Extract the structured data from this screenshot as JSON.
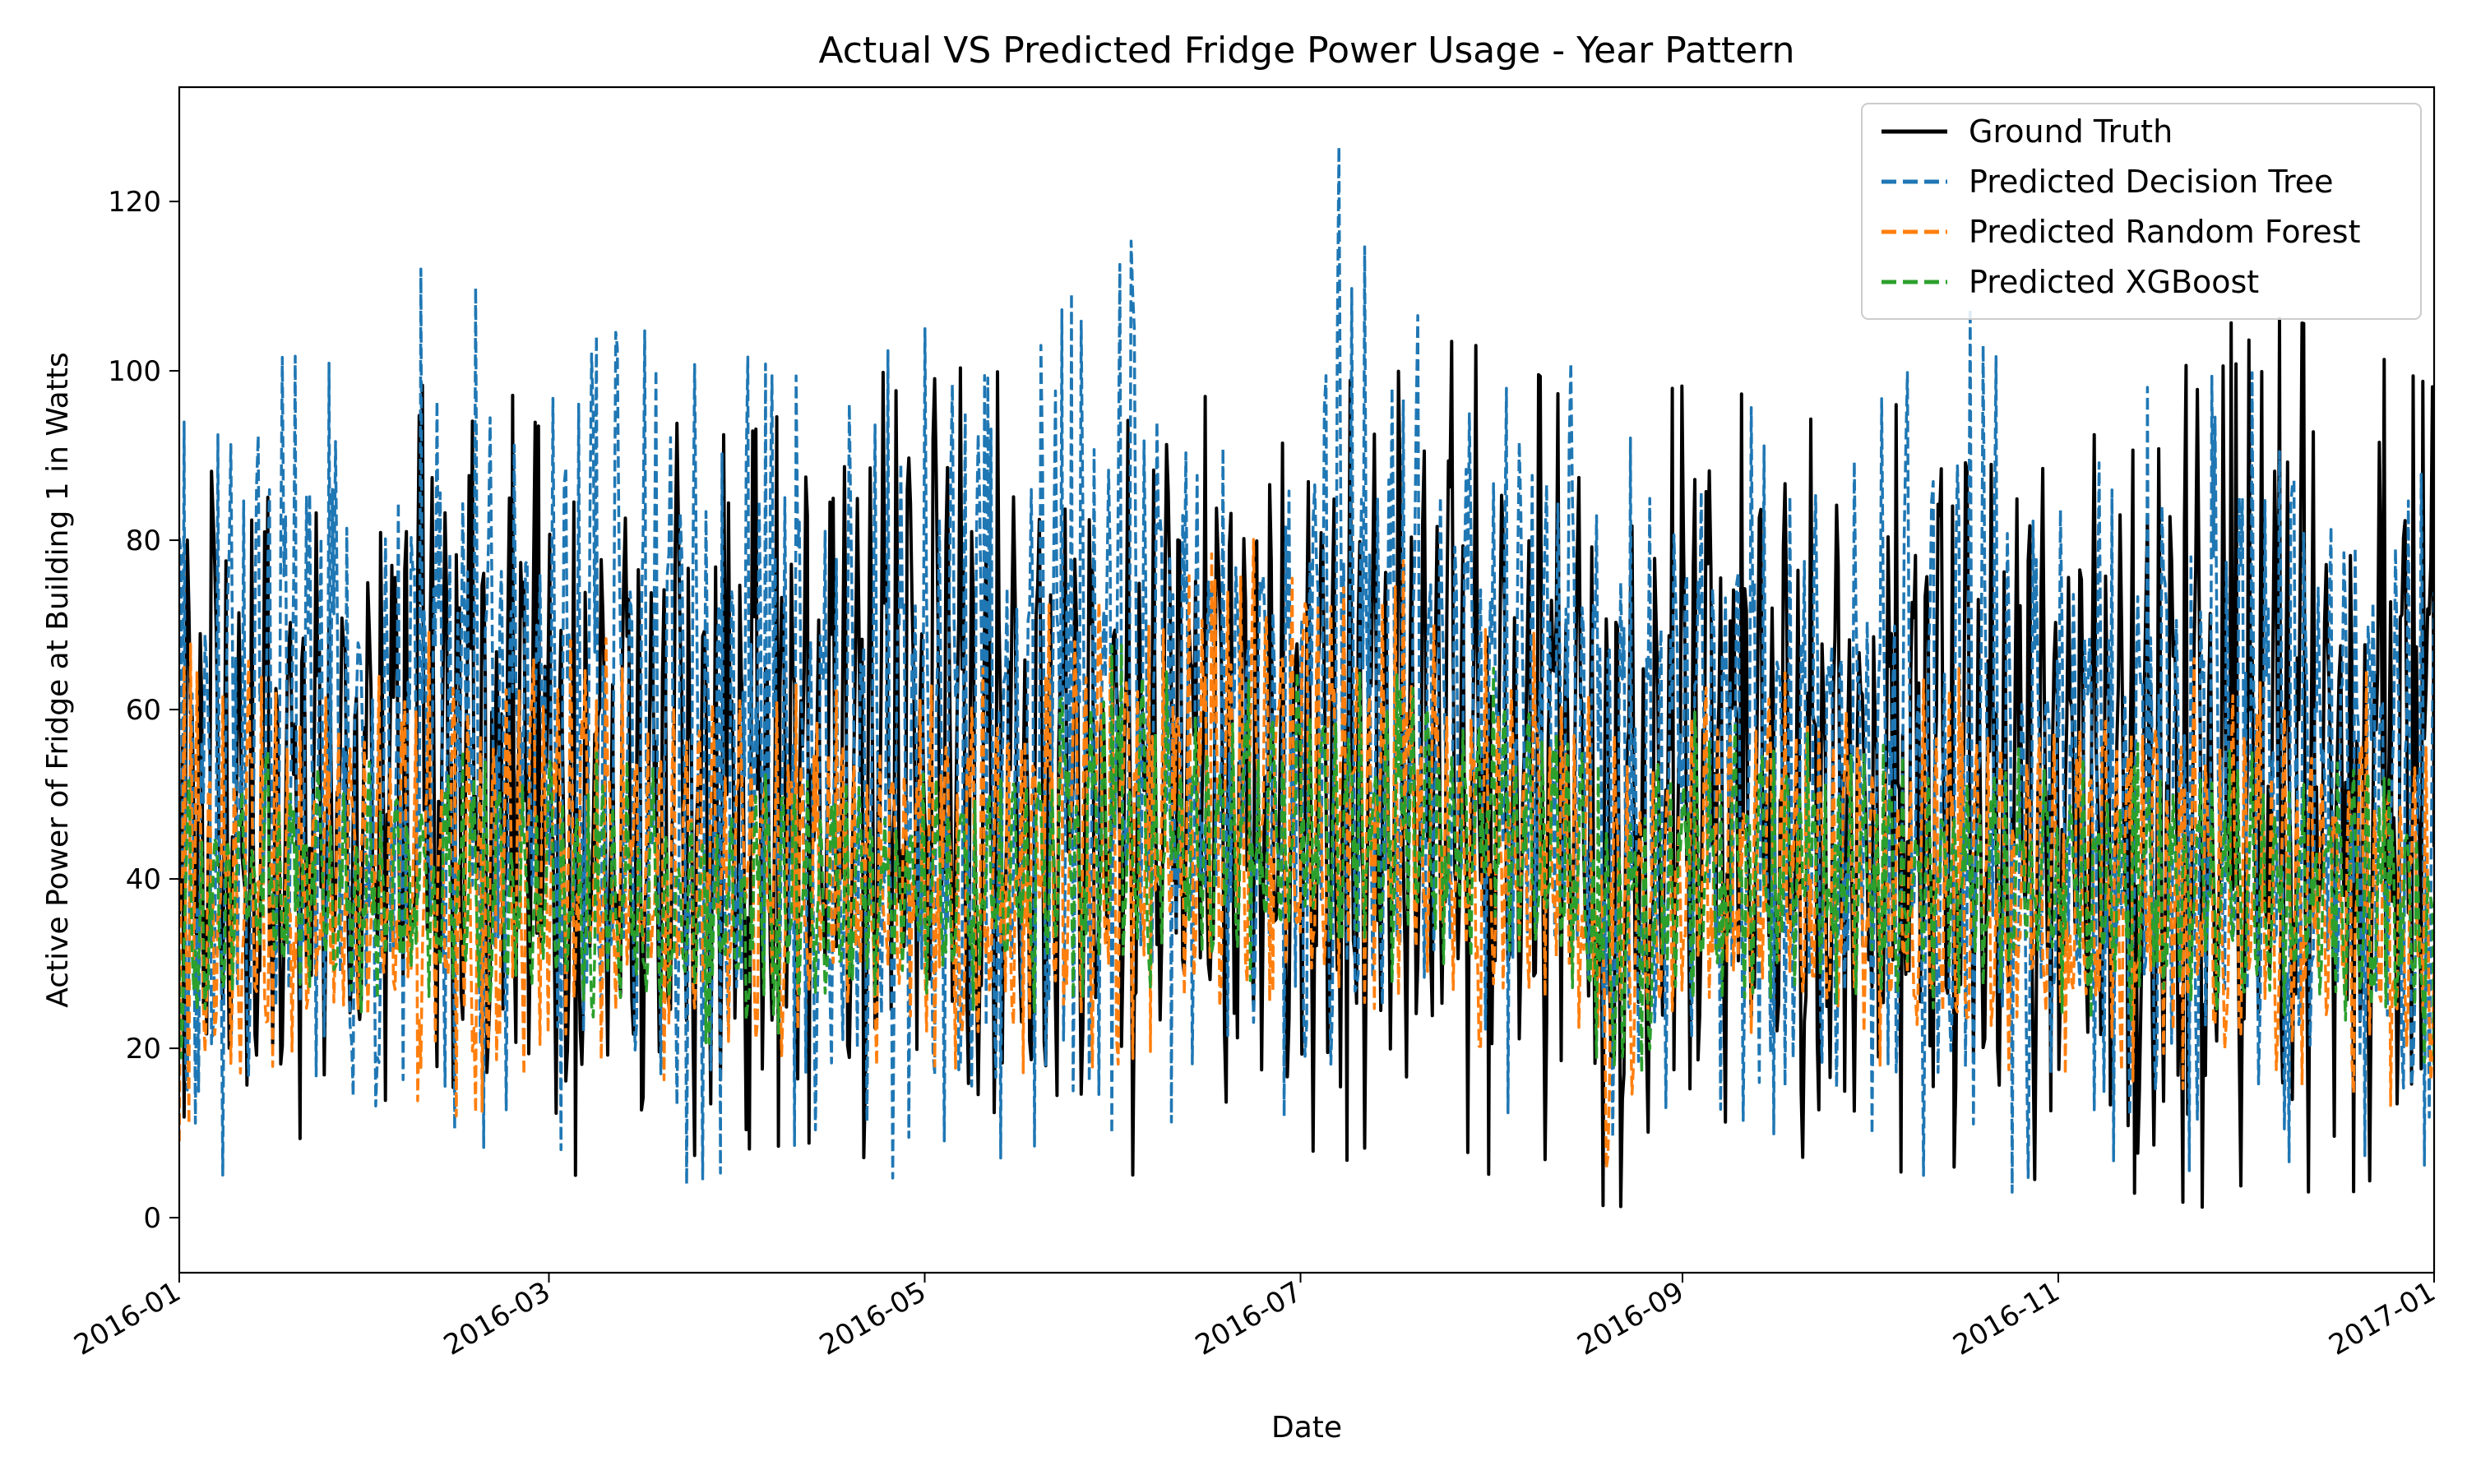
{
  "chart_data": {
    "type": "line",
    "title": "Actual VS Predicted Fridge Power Usage - Year Pattern",
    "xlabel": "Date",
    "ylabel": "Active Power of Fridge at Building 1 in Watts",
    "x_ticks": [
      "2016-01",
      "2016-03",
      "2016-05",
      "2016-07",
      "2016-09",
      "2016-11",
      "2017-01"
    ],
    "y_ticks": [
      "0",
      "20",
      "40",
      "60",
      "80",
      "100",
      "120"
    ],
    "xlim": [
      "2016-01-01",
      "2017-01-01"
    ],
    "ylim": [
      -6.5,
      133.5
    ],
    "legend_position": "top-right",
    "grid": false,
    "series": [
      {
        "name": "Ground Truth",
        "color": "#000000",
        "style": "solid",
        "band": [
          {
            "date": "2016-01-01",
            "low": 12,
            "high": 90
          },
          {
            "date": "2016-01-15",
            "low": 10,
            "high": 85
          },
          {
            "date": "2016-02-01",
            "low": 8,
            "high": 88
          },
          {
            "date": "2016-02-15",
            "low": 2,
            "high": 105
          },
          {
            "date": "2016-03-01",
            "low": 5,
            "high": 92
          },
          {
            "date": "2016-03-15",
            "low": 5,
            "high": 95
          },
          {
            "date": "2016-04-01",
            "low": 8,
            "high": 92
          },
          {
            "date": "2016-04-15",
            "low": 9,
            "high": 98
          },
          {
            "date": "2016-05-01",
            "low": 4,
            "high": 110
          },
          {
            "date": "2016-05-15",
            "low": 6,
            "high": 98
          },
          {
            "date": "2016-06-01",
            "low": 1,
            "high": 100
          },
          {
            "date": "2016-06-15",
            "low": 10,
            "high": 97
          },
          {
            "date": "2016-07-01",
            "low": 3,
            "high": 96
          },
          {
            "date": "2016-07-15",
            "low": 10,
            "high": 101
          },
          {
            "date": "2016-08-01",
            "low": 5,
            "high": 105
          },
          {
            "date": "2016-08-15",
            "low": 8,
            "high": 95
          },
          {
            "date": "2016-08-20",
            "low": 0,
            "high": 85
          },
          {
            "date": "2016-09-01",
            "low": 8,
            "high": 100
          },
          {
            "date": "2016-09-15",
            "low": 6,
            "high": 96
          },
          {
            "date": "2016-10-01",
            "low": 5,
            "high": 95
          },
          {
            "date": "2016-10-15",
            "low": 6,
            "high": 98
          },
          {
            "date": "2016-11-01",
            "low": 2,
            "high": 94
          },
          {
            "date": "2016-11-15",
            "low": 3,
            "high": 96
          },
          {
            "date": "2016-12-01",
            "low": 0,
            "high": 107
          },
          {
            "date": "2016-12-15",
            "low": 4,
            "high": 105
          },
          {
            "date": "2017-01-01",
            "low": 0,
            "high": 98
          }
        ]
      },
      {
        "name": "Predicted Decision Tree",
        "color": "#1f77b4",
        "style": "dashed",
        "band": [
          {
            "date": "2016-01-01",
            "low": 2,
            "high": 93
          },
          {
            "date": "2016-01-15",
            "low": 8,
            "high": 110
          },
          {
            "date": "2016-02-01",
            "low": 5,
            "high": 95
          },
          {
            "date": "2016-02-15",
            "low": 8,
            "high": 124
          },
          {
            "date": "2016-03-01",
            "low": 9,
            "high": 103
          },
          {
            "date": "2016-03-15",
            "low": 2,
            "high": 105
          },
          {
            "date": "2016-04-01",
            "low": 6,
            "high": 102
          },
          {
            "date": "2016-04-15",
            "low": 10,
            "high": 98
          },
          {
            "date": "2016-05-01",
            "low": 0,
            "high": 105
          },
          {
            "date": "2016-05-15",
            "low": 8,
            "high": 97
          },
          {
            "date": "2016-06-01",
            "low": 10,
            "high": 118
          },
          {
            "date": "2016-06-15",
            "low": 12,
            "high": 103
          },
          {
            "date": "2016-07-01",
            "low": 12,
            "high": 98
          },
          {
            "date": "2016-07-07",
            "low": 14,
            "high": 127
          },
          {
            "date": "2016-07-15",
            "low": 15,
            "high": 108
          },
          {
            "date": "2016-08-01",
            "low": 12,
            "high": 103
          },
          {
            "date": "2016-08-15",
            "low": 14,
            "high": 112
          },
          {
            "date": "2016-08-20",
            "low": 0,
            "high": 90
          },
          {
            "date": "2016-09-01",
            "low": 15,
            "high": 97
          },
          {
            "date": "2016-09-15",
            "low": 10,
            "high": 100
          },
          {
            "date": "2016-10-01",
            "low": 8,
            "high": 95
          },
          {
            "date": "2016-10-20",
            "low": 0,
            "high": 109
          },
          {
            "date": "2016-11-01",
            "low": 8,
            "high": 92
          },
          {
            "date": "2016-11-15",
            "low": 6,
            "high": 98
          },
          {
            "date": "2016-12-01",
            "low": 5,
            "high": 100
          },
          {
            "date": "2016-12-15",
            "low": 8,
            "high": 98
          },
          {
            "date": "2017-01-01",
            "low": 6,
            "high": 90
          }
        ]
      },
      {
        "name": "Predicted Random Forest",
        "color": "#ff7f0e",
        "style": "dashed",
        "band": [
          {
            "date": "2016-01-01",
            "low": 9,
            "high": 68
          },
          {
            "date": "2016-01-15",
            "low": 18,
            "high": 66
          },
          {
            "date": "2016-02-01",
            "low": 16,
            "high": 63
          },
          {
            "date": "2016-02-15",
            "low": 12,
            "high": 72
          },
          {
            "date": "2016-03-01",
            "low": 14,
            "high": 73
          },
          {
            "date": "2016-03-15",
            "low": 16,
            "high": 66
          },
          {
            "date": "2016-04-01",
            "low": 17,
            "high": 65
          },
          {
            "date": "2016-04-15",
            "low": 18,
            "high": 62
          },
          {
            "date": "2016-05-01",
            "low": 18,
            "high": 66
          },
          {
            "date": "2016-05-15",
            "low": 17,
            "high": 68
          },
          {
            "date": "2016-06-01",
            "low": 18,
            "high": 80
          },
          {
            "date": "2016-06-15",
            "low": 22,
            "high": 78
          },
          {
            "date": "2016-07-01",
            "low": 20,
            "high": 82
          },
          {
            "date": "2016-07-15",
            "low": 22,
            "high": 79
          },
          {
            "date": "2016-08-01",
            "low": 20,
            "high": 70
          },
          {
            "date": "2016-08-15",
            "low": 18,
            "high": 68
          },
          {
            "date": "2016-08-20",
            "low": 0,
            "high": 60
          },
          {
            "date": "2016-09-01",
            "low": 20,
            "high": 62
          },
          {
            "date": "2016-09-15",
            "low": 19,
            "high": 64
          },
          {
            "date": "2016-10-01",
            "low": 18,
            "high": 66
          },
          {
            "date": "2016-10-15",
            "low": 18,
            "high": 65
          },
          {
            "date": "2016-11-01",
            "low": 17,
            "high": 62
          },
          {
            "date": "2016-11-15",
            "low": 16,
            "high": 64
          },
          {
            "date": "2016-12-01",
            "low": 14,
            "high": 68
          },
          {
            "date": "2016-12-15",
            "low": 15,
            "high": 66
          },
          {
            "date": "2017-01-01",
            "low": 12,
            "high": 62
          }
        ]
      },
      {
        "name": "Predicted XGBoost",
        "color": "#2ca02c",
        "style": "dashed",
        "band": [
          {
            "date": "2016-01-01",
            "low": 15,
            "high": 55
          },
          {
            "date": "2016-01-15",
            "low": 25,
            "high": 55
          },
          {
            "date": "2016-02-01",
            "low": 24,
            "high": 54
          },
          {
            "date": "2016-02-15",
            "low": 22,
            "high": 55
          },
          {
            "date": "2016-03-01",
            "low": 23,
            "high": 56
          },
          {
            "date": "2016-03-15",
            "low": 22,
            "high": 54
          },
          {
            "date": "2016-04-01",
            "low": 20,
            "high": 52
          },
          {
            "date": "2016-04-15",
            "low": 24,
            "high": 53
          },
          {
            "date": "2016-05-01",
            "low": 24,
            "high": 54
          },
          {
            "date": "2016-05-15",
            "low": 25,
            "high": 55
          },
          {
            "date": "2016-06-01",
            "low": 22,
            "high": 68
          },
          {
            "date": "2016-06-15",
            "low": 28,
            "high": 62
          },
          {
            "date": "2016-07-01",
            "low": 28,
            "high": 65
          },
          {
            "date": "2016-07-15",
            "low": 28,
            "high": 64
          },
          {
            "date": "2016-08-01",
            "low": 26,
            "high": 65
          },
          {
            "date": "2016-08-15",
            "low": 24,
            "high": 60
          },
          {
            "date": "2016-08-20",
            "low": 10,
            "high": 50
          },
          {
            "date": "2016-09-01",
            "low": 26,
            "high": 60
          },
          {
            "date": "2016-09-15",
            "low": 26,
            "high": 58
          },
          {
            "date": "2016-10-01",
            "low": 25,
            "high": 56
          },
          {
            "date": "2016-10-15",
            "low": 24,
            "high": 55
          },
          {
            "date": "2016-11-01",
            "low": 24,
            "high": 56
          },
          {
            "date": "2016-11-15",
            "low": 23,
            "high": 56
          },
          {
            "date": "2016-12-01",
            "low": 22,
            "high": 55
          },
          {
            "date": "2016-12-15",
            "low": 22,
            "high": 54
          },
          {
            "date": "2017-01-01",
            "low": 18,
            "high": 50
          }
        ]
      }
    ]
  }
}
